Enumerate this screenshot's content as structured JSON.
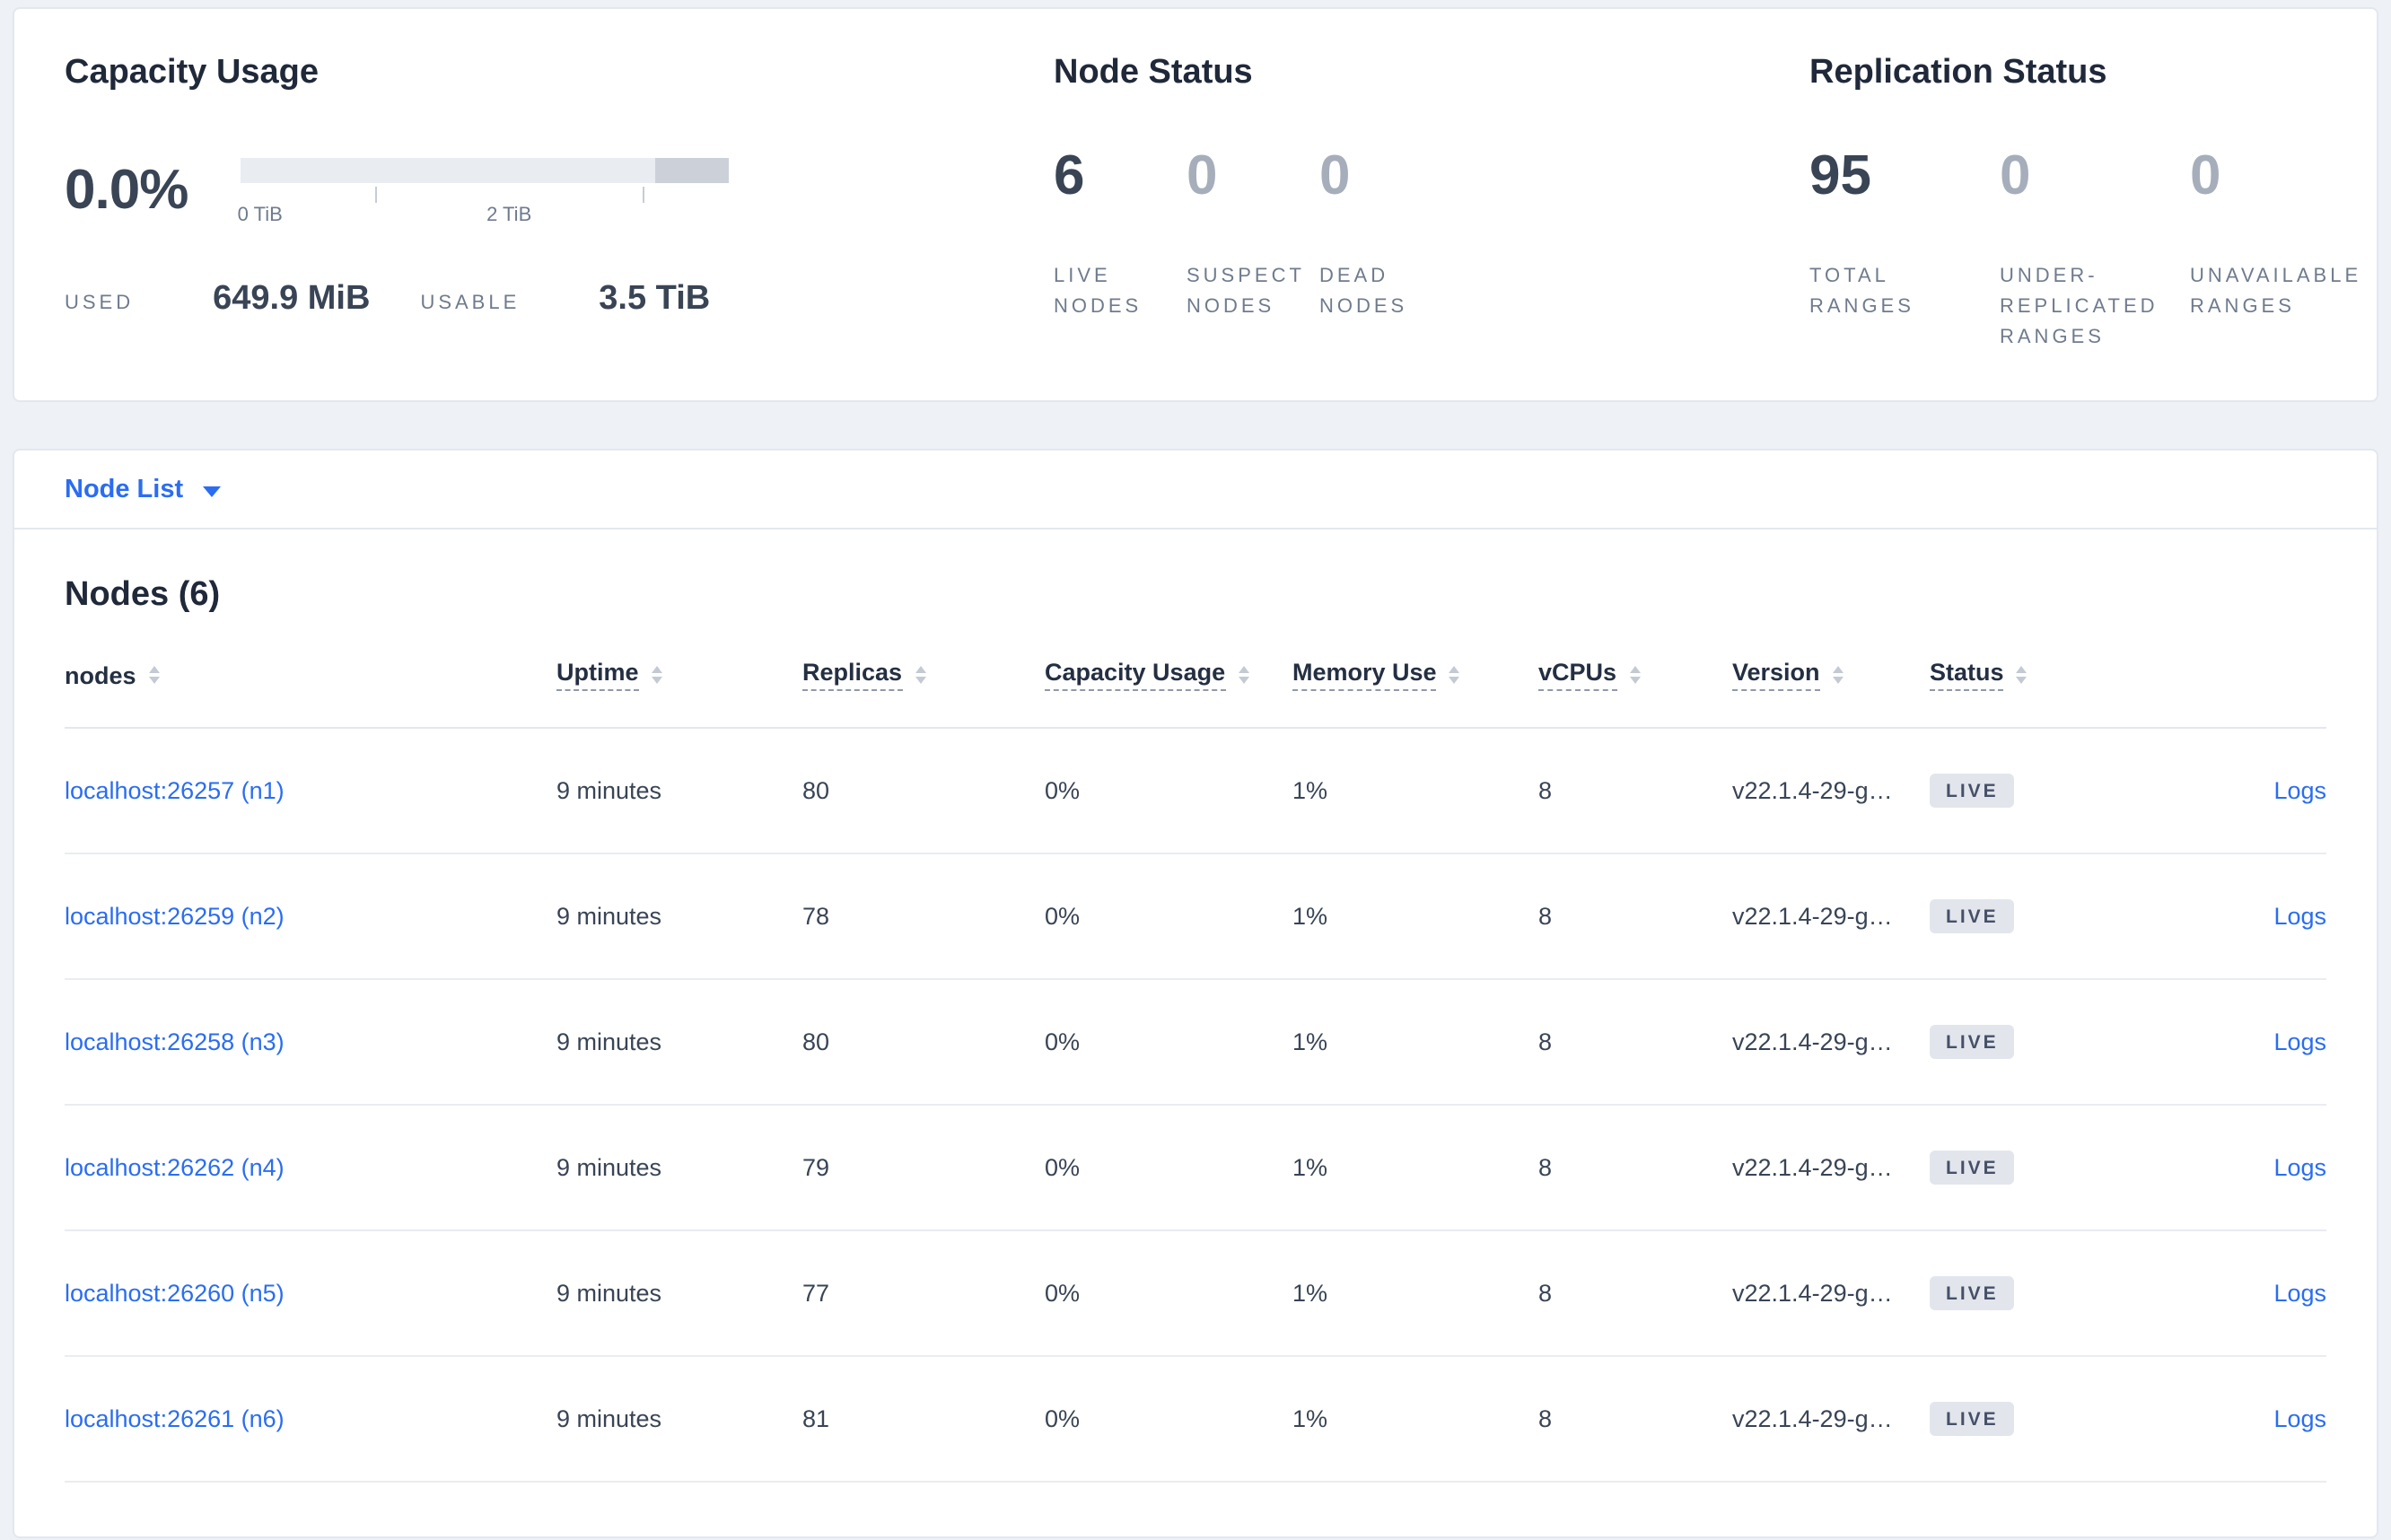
{
  "colors": {
    "accent": "#2a6df2",
    "background": "#eef1f6",
    "card_border": "#e3e8ee",
    "text_primary": "#394455",
    "text_muted": "#6f7b8d",
    "dim_number": "#a6aebb",
    "badge_bg": "#e2e6ec",
    "bar_light": "#e9ecf1",
    "bar_dark": "#ccd1d9"
  },
  "summary": {
    "capacity": {
      "title": "Capacity Usage",
      "percent": "0.0%",
      "tick_labels": [
        "0 TiB",
        "2 TiB"
      ],
      "used_label": "USED",
      "used_value": "649.9 MiB",
      "usable_label": "USABLE",
      "usable_value": "3.5 TiB"
    },
    "node_status": {
      "title": "Node Status",
      "stats": [
        {
          "value": "6",
          "label": "LIVE NODES"
        },
        {
          "value": "0",
          "label": "SUSPECT NODES"
        },
        {
          "value": "0",
          "label": "DEAD NODES"
        }
      ]
    },
    "replication": {
      "title": "Replication Status",
      "stats": [
        {
          "value": "95",
          "label": "TOTAL RANGES"
        },
        {
          "value": "0",
          "label": "UNDER-REPLICATED RANGES"
        },
        {
          "value": "0",
          "label": "UNAVAILABLE RANGES"
        }
      ]
    }
  },
  "node_list": {
    "dropdown_label": "Node List"
  },
  "nodes_table": {
    "title": "Nodes (6)",
    "columns": [
      "nodes",
      "Uptime",
      "Replicas",
      "Capacity Usage",
      "Memory Use",
      "vCPUs",
      "Version",
      "Status",
      ""
    ],
    "rows": [
      {
        "node": "localhost:26257 (n1)",
        "uptime": "9 minutes",
        "replicas": "80",
        "capacity": "0%",
        "memory": "1%",
        "vcpus": "8",
        "version": "v22.1.4-29-g…",
        "status": "LIVE",
        "logs": "Logs"
      },
      {
        "node": "localhost:26259 (n2)",
        "uptime": "9 minutes",
        "replicas": "78",
        "capacity": "0%",
        "memory": "1%",
        "vcpus": "8",
        "version": "v22.1.4-29-g…",
        "status": "LIVE",
        "logs": "Logs"
      },
      {
        "node": "localhost:26258 (n3)",
        "uptime": "9 minutes",
        "replicas": "80",
        "capacity": "0%",
        "memory": "1%",
        "vcpus": "8",
        "version": "v22.1.4-29-g…",
        "status": "LIVE",
        "logs": "Logs"
      },
      {
        "node": "localhost:26262 (n4)",
        "uptime": "9 minutes",
        "replicas": "79",
        "capacity": "0%",
        "memory": "1%",
        "vcpus": "8",
        "version": "v22.1.4-29-g…",
        "status": "LIVE",
        "logs": "Logs"
      },
      {
        "node": "localhost:26260 (n5)",
        "uptime": "9 minutes",
        "replicas": "77",
        "capacity": "0%",
        "memory": "1%",
        "vcpus": "8",
        "version": "v22.1.4-29-g…",
        "status": "LIVE",
        "logs": "Logs"
      },
      {
        "node": "localhost:26261 (n6)",
        "uptime": "9 minutes",
        "replicas": "81",
        "capacity": "0%",
        "memory": "1%",
        "vcpus": "8",
        "version": "v22.1.4-29-g…",
        "status": "LIVE",
        "logs": "Logs"
      }
    ]
  }
}
